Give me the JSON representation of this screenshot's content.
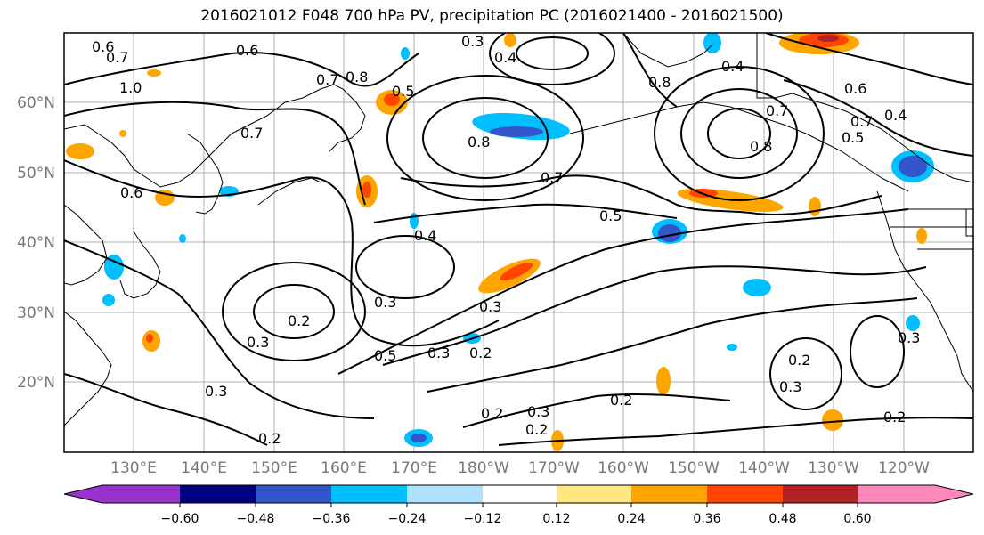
{
  "title": "2016021012 F048 700 hPa PV, precipitation PC (2016021400 - 2016021500)",
  "map": {
    "lat_ticks": [
      "60°N",
      "50°N",
      "40°N",
      "30°N",
      "20°N"
    ],
    "lon_ticks": [
      "130°E",
      "140°E",
      "150°E",
      "160°E",
      "170°E",
      "180°W",
      "170°W",
      "160°W",
      "150°W",
      "140°W",
      "130°W",
      "120°W"
    ],
    "contour_labels": [
      "0.6",
      "0.7",
      "1.0",
      "0.6",
      "0.7",
      "0.6",
      "0.7",
      "0.8",
      "0.5",
      "0.3",
      "0.4",
      "0.8",
      "0.8",
      "0.7",
      "0.5",
      "0.4",
      "0.4",
      "0.8",
      "0.7",
      "0.6",
      "0.4",
      "0.5",
      "0.7",
      "0.3",
      "0.2",
      "0.3",
      "0.3",
      "0.5",
      "0.3",
      "0.2",
      "0.2",
      "0.3",
      "0.2",
      "0.2",
      "0.3",
      "0.2",
      "0.3",
      "0.2",
      "0.3",
      "0.2"
    ]
  },
  "colorbar": {
    "tick_labels": [
      "−0.60",
      "−0.48",
      "−0.36",
      "−0.24",
      "−0.12",
      "0.12",
      "0.24",
      "0.36",
      "0.48",
      "0.60"
    ],
    "colors": [
      "#9933cc",
      "#000080",
      "#3355cc",
      "#00bfff",
      "#b0e0ff",
      "#ffffff",
      "#ffe680",
      "#ffa500",
      "#ff4500",
      "#b22222",
      "#ff88bb"
    ]
  }
}
